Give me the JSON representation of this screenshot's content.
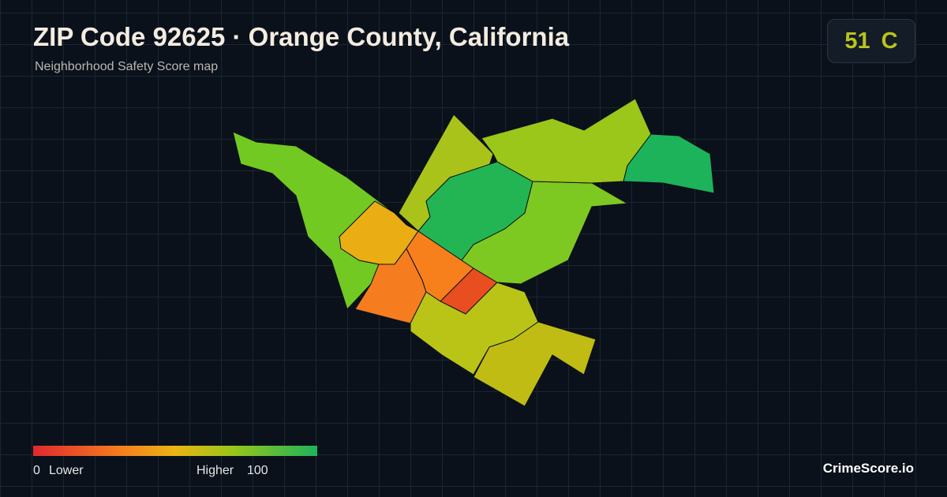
{
  "header": {
    "title": "ZIP Code 92625 · Orange County, California",
    "subtitle": "Neighborhood Safety Score map"
  },
  "badge": {
    "score": 51,
    "grade": "C"
  },
  "legend": {
    "min": 0,
    "min_label": "Lower",
    "max_label": "Higher",
    "max": 100
  },
  "brand": "CrimeScore.io"
}
